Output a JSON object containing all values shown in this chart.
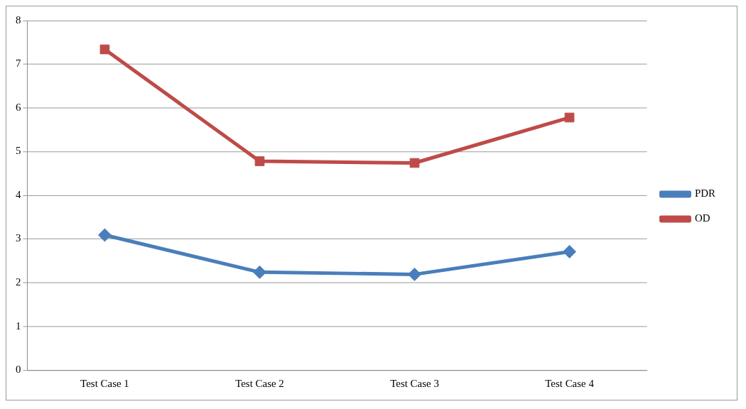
{
  "chart_data": {
    "type": "line",
    "categories": [
      "Test Case 1",
      "Test Case 2",
      "Test Case 3",
      "Test Case 4"
    ],
    "series": [
      {
        "name": "PDR",
        "color": "#4a7ebb",
        "marker": "diamond",
        "values": [
          3.09,
          2.24,
          2.19,
          2.71
        ]
      },
      {
        "name": "OD",
        "color": "#be4b48",
        "marker": "square",
        "values": [
          7.34,
          4.78,
          4.74,
          5.78
        ]
      }
    ],
    "ylim": [
      0,
      8
    ],
    "yticks": [
      0,
      1,
      2,
      3,
      4,
      5,
      6,
      7,
      8
    ],
    "grid": "y",
    "legend": "right"
  }
}
